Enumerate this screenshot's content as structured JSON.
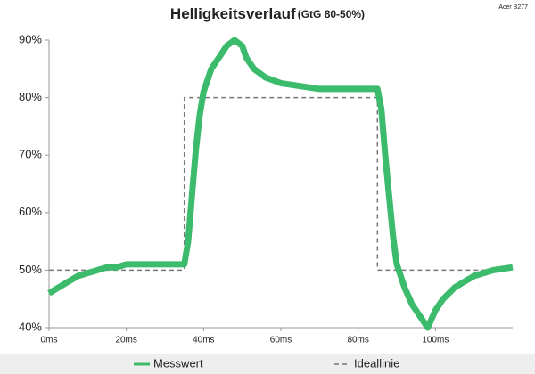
{
  "chart_data": {
    "type": "line",
    "title": "Helligkeitsverlauf",
    "subtitle": "(GtG 80-50%)",
    "corner_note": "Acer B277",
    "xlim": [
      0,
      120
    ],
    "xticks": [
      {
        "value": 0,
        "label": "0ms"
      },
      {
        "value": 20,
        "label": "20ms"
      },
      {
        "value": 40,
        "label": "40ms"
      },
      {
        "value": 60,
        "label": "60ms"
      },
      {
        "value": 80,
        "label": "80ms"
      },
      {
        "value": 100,
        "label": "100ms"
      }
    ],
    "ylim": [
      40,
      90
    ],
    "yticks": [
      {
        "value": 40,
        "label": "40%"
      },
      {
        "value": 50,
        "label": "50%"
      },
      {
        "value": 60,
        "label": "60%"
      },
      {
        "value": 70,
        "label": "70%"
      },
      {
        "value": 80,
        "label": "80%"
      },
      {
        "value": 90,
        "label": "90%"
      }
    ],
    "legend": "bottom",
    "series": [
      {
        "name": "Messwert",
        "color": "#3dbb6c",
        "style": "solid",
        "x": [
          0,
          2.5,
          5,
          7.5,
          10,
          12.5,
          15,
          17.5,
          20,
          25,
          30,
          35,
          36,
          37,
          38,
          39,
          40,
          42,
          44,
          46,
          48,
          50,
          51,
          53,
          56,
          60,
          65,
          70,
          75,
          80,
          85,
          86,
          87,
          88,
          89,
          90,
          92,
          94,
          96,
          98,
          100,
          102,
          105,
          110,
          115,
          120
        ],
        "values": [
          46,
          47,
          48,
          49,
          49.5,
          50,
          50.5,
          50.5,
          51,
          51,
          51,
          51,
          55,
          63,
          71,
          77,
          81,
          85,
          87,
          89,
          90,
          89,
          87,
          85,
          83.5,
          82.5,
          82,
          81.5,
          81.5,
          81.5,
          81.5,
          78,
          70,
          63,
          56,
          51,
          47,
          44,
          42,
          40,
          43,
          45,
          47,
          49,
          50,
          50.5
        ]
      },
      {
        "name": "Ideallinie",
        "color": "#777777",
        "style": "dashed",
        "x": [
          0,
          35,
          35,
          85,
          85,
          120
        ],
        "values": [
          50,
          50,
          80,
          80,
          50,
          50
        ]
      }
    ]
  }
}
